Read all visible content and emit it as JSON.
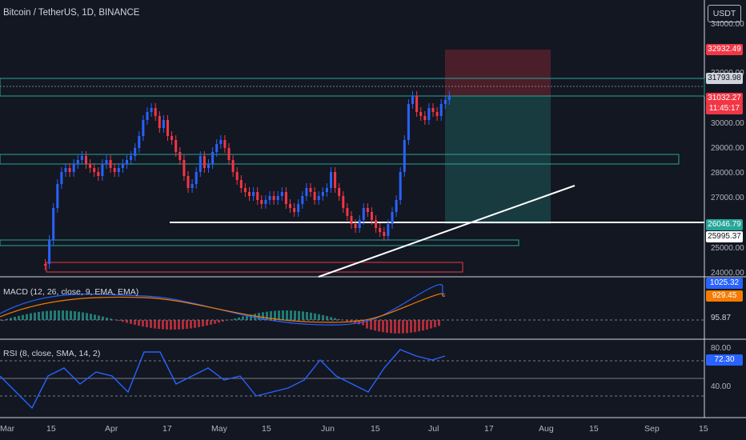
{
  "symbol_title": "Bitcoin / TetherUS, 1D, BINANCE",
  "currency": "USDT",
  "price_axis": [
    "34000.00",
    "32000.00",
    "30000.00",
    "29000.00",
    "28000.00",
    "27000.00",
    "25000.00",
    "24000.00"
  ],
  "price_tags": {
    "target": "32932.49",
    "level_high": "31793.98",
    "last_price": "31032.27",
    "countdown": "11:45:17",
    "entry": "26046.79",
    "stop": "25995.37"
  },
  "macd": {
    "title": "MACD (12, 26, close, 9, EMA, EMA)",
    "macd_value": "1025.32",
    "signal_value": "929.45",
    "hist_value": "95.87"
  },
  "rsi": {
    "title": "RSI (8, close, SMA, 14, 2)",
    "value": "72.30",
    "levels": [
      "80.00",
      "40.00"
    ]
  },
  "date_axis": [
    "Mar",
    "15",
    "Apr",
    "17",
    "May",
    "15",
    "Jun",
    "15",
    "Jul",
    "17",
    "Aug",
    "15",
    "Sep",
    "15"
  ],
  "colors": {
    "up": "#2962ff",
    "down": "#f23645",
    "zone": "#26a69a",
    "bg": "#131722"
  }
}
